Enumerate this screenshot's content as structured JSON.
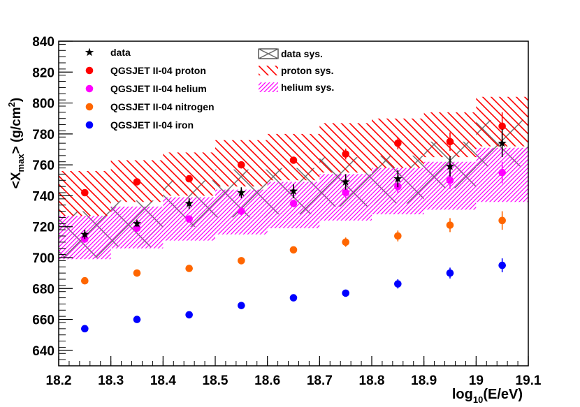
{
  "chart_data": {
    "type": "scatter",
    "xlabel": {
      "main": "log",
      "sub": "10",
      "rest": "(E/eV)"
    },
    "ylabel": {
      "pre": "<X",
      "sub": "max",
      "mid": "> (g/cm",
      "sup": "2",
      "post": ")"
    },
    "xlim": [
      18.2,
      19.1
    ],
    "ylim": [
      630,
      840
    ],
    "x_ticks": [
      "18.2",
      "18.3",
      "18.4",
      "18.5",
      "18.6",
      "18.7",
      "18.8",
      "18.9",
      "19",
      "19.1"
    ],
    "y_ticks": [
      "640",
      "660",
      "680",
      "700",
      "720",
      "740",
      "760",
      "780",
      "800",
      "820",
      "840"
    ],
    "x": [
      18.25,
      18.35,
      18.45,
      18.55,
      18.65,
      18.75,
      18.85,
      18.95,
      19.05
    ],
    "series": [
      {
        "name": "QGSJET II-04 proton",
        "legend": "QGSJET II-04 proton",
        "color": "#ff0000",
        "marker": "circle",
        "values": [
          742,
          749,
          751,
          760,
          763,
          767,
          774,
          775,
          785
        ],
        "errors": [
          1,
          1,
          1.5,
          2,
          2,
          3.5,
          4,
          6,
          9
        ]
      },
      {
        "name": "QGSJET II-04 helium",
        "legend": "QGSJET II-04 helium",
        "color": "#ff00ff",
        "marker": "circle",
        "values": [
          712,
          719,
          725,
          730,
          735,
          742,
          746,
          750,
          755
        ],
        "errors": [
          1,
          1,
          1.5,
          2,
          2.5,
          3.5,
          4,
          5.5,
          7
        ]
      },
      {
        "name": "QGSJET II-04 nitrogen",
        "legend": "QGSJET II-04 nitrogen",
        "color": "#ff6600",
        "marker": "circle",
        "values": [
          685,
          690,
          693,
          698,
          705,
          710,
          714,
          721,
          724
        ],
        "errors": [
          1,
          1,
          1.5,
          1.5,
          1.5,
          3,
          3.5,
          4.5,
          6
        ]
      },
      {
        "name": "QGSJET II-04 iron",
        "legend": "QGSJET II-04 iron",
        "color": "#0000ff",
        "marker": "circle",
        "values": [
          654,
          660,
          663,
          669,
          674,
          677,
          683,
          690,
          695
        ],
        "errors": [
          1,
          1,
          1,
          1,
          1.5,
          2,
          3,
          3.5,
          4.5
        ]
      },
      {
        "name": "data",
        "legend": "data",
        "color": "#000000",
        "marker": "star",
        "values": [
          715,
          722,
          735,
          742,
          743,
          749,
          751,
          759,
          774
        ],
        "errors": [
          3,
          2,
          3.5,
          3.5,
          4.5,
          5,
          5.5,
          6.5,
          9
        ]
      }
    ],
    "bands": [
      {
        "name": "data sys.",
        "legend": "data sys.",
        "color": "#6e6e6e",
        "pattern": "crosshatch",
        "lower": [
          700,
          707,
          720,
          726,
          728,
          733,
          735,
          745,
          759
        ],
        "upper": [
          730,
          737,
          750,
          757,
          758,
          765,
          766,
          775,
          789
        ]
      },
      {
        "name": "proton sys.",
        "legend": "proton sys.",
        "color": "#ff0000",
        "pattern": "backslash",
        "lower": [
          727,
          736,
          740,
          746,
          750,
          755,
          758,
          765,
          772
        ],
        "upper": [
          756,
          763,
          768,
          776,
          780,
          787,
          790,
          794,
          804
        ]
      },
      {
        "name": "helium sys.",
        "legend": "helium sys.",
        "color": "#ff00ff",
        "pattern": "slash",
        "lower": [
          699,
          706,
          711,
          715,
          719,
          724,
          728,
          731,
          736
        ],
        "upper": [
          727,
          733,
          739,
          744,
          749,
          754,
          758,
          762,
          771
        ]
      }
    ],
    "legend_position": "top"
  }
}
